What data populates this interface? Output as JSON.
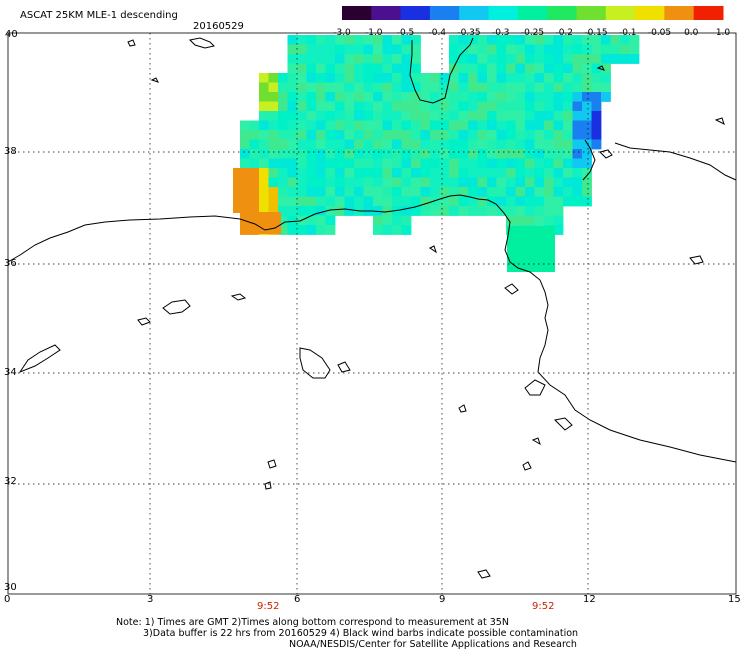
{
  "header": {
    "title": "ASCAT 25KM MLE-1 descending",
    "date": "20160529"
  },
  "colorbar": {
    "labels": [
      "-3.0",
      "-1.0",
      "-0.5",
      "-0.4",
      "-0.35",
      "-0.3",
      "-0.25",
      "-0.2",
      "-0.15",
      "-0.1",
      "-0.05",
      "0.0",
      "1.0"
    ],
    "colors": [
      "#2a0030",
      "#4a1090",
      "#1a30e0",
      "#1a80f0",
      "#10c8f0",
      "#00f0e0",
      "#00f0a0",
      "#20e860",
      "#70e030",
      "#c8f020",
      "#f0e000",
      "#f09010",
      "#f02000"
    ]
  },
  "axes": {
    "x_ticks": [
      "0",
      "3",
      "6",
      "9",
      "12",
      "15"
    ],
    "y_ticks": [
      "40",
      "38",
      "36",
      "34",
      "32",
      "30"
    ]
  },
  "pass_times": [
    "9:52",
    "9:52"
  ],
  "notes": {
    "line1": "Note: 1) Times are GMT 2)Times along bottom correspond to measurement at 35N",
    "line2": "3)Data buffer is 22 hrs from 20160529 4) Black wind barbs indicate possible contamination",
    "line3": "NOAA/NESDIS/Center for Satellite Applications and Research"
  }
}
